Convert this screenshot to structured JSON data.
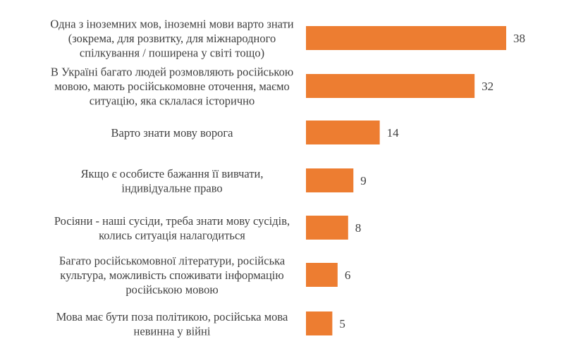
{
  "chart_data": {
    "type": "bar",
    "orientation": "horizontal",
    "title": "",
    "xlabel": "",
    "ylabel": "",
    "bar_color": "#ED7D31",
    "text_color": "#404040",
    "xlim": [
      0,
      40
    ],
    "grid": false,
    "categories": [
      [
        "Одна з іноземних мов, іноземні мови варто знати",
        "(зокрема, для розвитку, для міжнародного",
        "спілкування / поширена у світі тощо)"
      ],
      [
        "В Україні багато людей розмовляють російською",
        "мовою, мають російськомовне оточення, маємо",
        "ситуацію, яка склалася історично"
      ],
      [
        "Варто знати мову ворога"
      ],
      [
        "Якщо є особисте бажання її вивчати,",
        "індивідуальне право"
      ],
      [
        "Росіяни - наші сусіди, треба знати мову сусідів,",
        "колись ситуація налагодиться"
      ],
      [
        "Багато російськомовної літератури, російська",
        "культура, можливість споживати інформацію",
        "російською мовою"
      ],
      [
        "Мова має бути поза політикою, російська мова",
        "невинна у війні"
      ]
    ],
    "values": [
      38,
      32,
      14,
      9,
      8,
      6,
      5
    ]
  }
}
